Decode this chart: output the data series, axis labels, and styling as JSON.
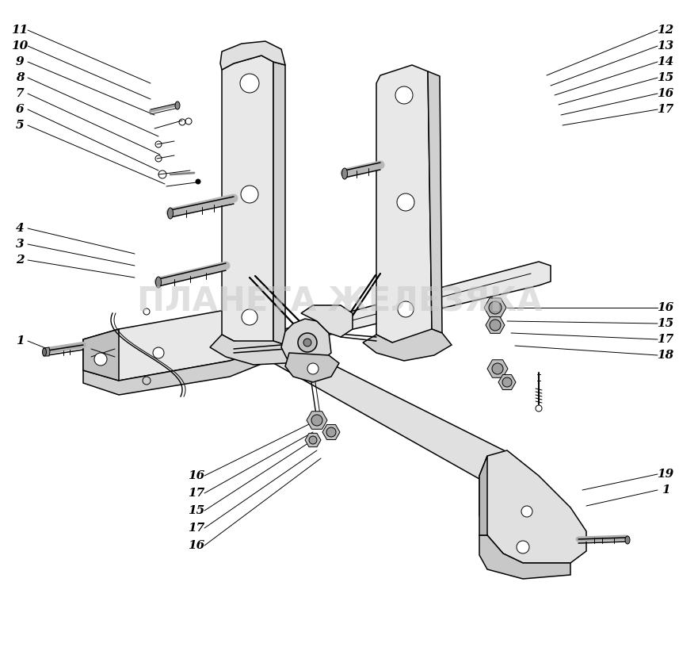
{
  "bg_color": "#ffffff",
  "fg_color": "#000000",
  "watermark_text": "ПЛАНЕТА ЖЕЛЕЗЯКА",
  "watermark_color": "#c8c8c8",
  "watermark_alpha": 0.55,
  "fig_width": 8.57,
  "fig_height": 8.21,
  "dpi": 100,
  "label_fontsize": 11,
  "lw_main": 1.1,
  "lw_thin": 0.7,
  "part_fill": "#f0f0f0",
  "part_edge": "#000000",
  "shadow_fill": "#d0d0d0"
}
